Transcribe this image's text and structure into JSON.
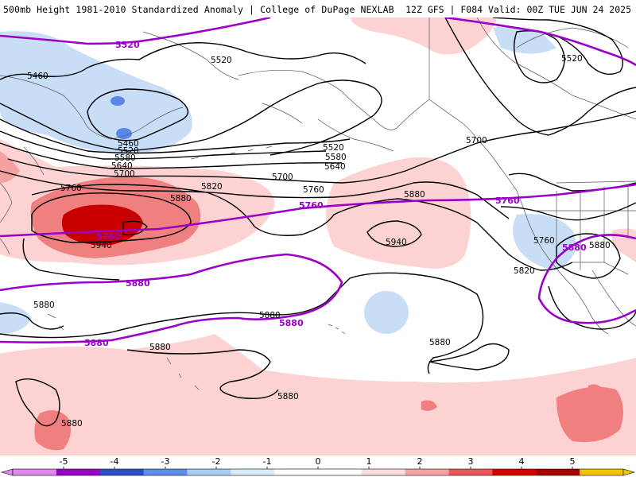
{
  "header": {
    "title_left": "500mb Height 1981-2010 Standardized Anomaly | College of DuPage NEXLAB",
    "title_right": "12Z GFS | F084 Valid: 00Z TUE JUN 24 2025"
  },
  "map": {
    "contour_labels": [
      "5460",
      "5520",
      "5580",
      "5640",
      "5700",
      "5760",
      "5820",
      "5880",
      "5940"
    ],
    "climatology_labels": [
      "5520",
      "5760",
      "5880"
    ],
    "colors": {
      "contour": "#000000",
      "climatology": "#9a00c8",
      "coast": "#555555",
      "land": "#ffffff"
    }
  },
  "colorbar": {
    "ticks": [
      "-5",
      "-4",
      "-3",
      "-2",
      "-1",
      "0",
      "1",
      "2",
      "3",
      "4",
      "5"
    ],
    "colors": [
      "#e088f0",
      "#9a00c8",
      "#2a50c8",
      "#5a8ef0",
      "#a8cdf5",
      "#d8eafb",
      "#ffffff",
      "#ffffff",
      "#fddcdc",
      "#f7a2a2",
      "#ee5757",
      "#d40000",
      "#a80000",
      "#f2c300"
    ]
  }
}
